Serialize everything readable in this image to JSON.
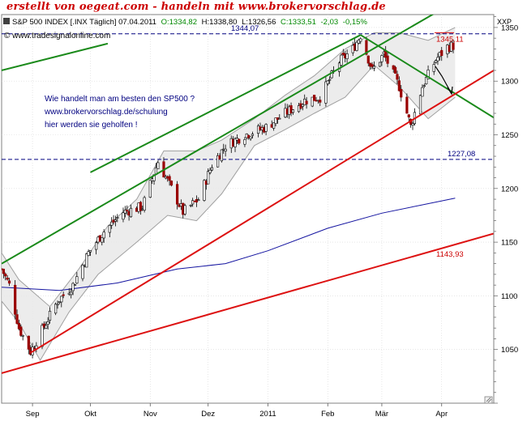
{
  "banner": "erstellt von oegeat.com - handeln mit www.brokervorschlag.de",
  "chart_data": {
    "type": "candlestick",
    "header": {
      "instrument": "S&P 500 INDEX [.INX Täglich] 07.04.2011",
      "open": "O:1334,82",
      "high": "H:1338,80",
      "low": "L:1326,56",
      "close": "C:1333,51",
      "change": "-2,03",
      "change_pct": "-0,15%"
    },
    "source": "© www.tradesignalonline.com",
    "axis_symbol": "XXP",
    "ylim": [
      1000,
      1362
    ],
    "xlim": [
      "2010-08-16",
      "2011-04-28"
    ],
    "y_ticks": [
      1050,
      1100,
      1150,
      1200,
      1250,
      1300,
      1350
    ],
    "x_ticks": [
      {
        "date": "2010-09-01",
        "label": "Sep"
      },
      {
        "date": "2010-10-01",
        "label": "Okt"
      },
      {
        "date": "2010-11-01",
        "label": "Nov"
      },
      {
        "date": "2010-12-01",
        "label": "Dez"
      },
      {
        "date": "2011-01-01",
        "label": "2011"
      },
      {
        "date": "2011-02-01",
        "label": "Feb"
      },
      {
        "date": "2011-03-01",
        "label": "Mär"
      },
      {
        "date": "2011-04-01",
        "label": "Apr"
      }
    ],
    "levels": [
      {
        "value": 1344.07,
        "label": "1344,07",
        "color": "#000080",
        "style": "dashed"
      },
      {
        "value": 1227.08,
        "label": "1227,08",
        "color": "#000080",
        "style": "dashed"
      }
    ],
    "price_labels": [
      {
        "value": 1345.11,
        "label": "1345,11",
        "color": "#cc0000"
      },
      {
        "value": 1143.93,
        "label": "1143,93",
        "color": "#cc0000"
      }
    ],
    "trend_lines": [
      {
        "color": "#1a8a1a",
        "points": [
          [
            "2010-08-16",
            1130
          ],
          [
            "2011-04-28",
            1395
          ]
        ]
      },
      {
        "color": "#1a8a1a",
        "points": [
          [
            "2010-08-16",
            1310
          ],
          [
            "2010-10-10",
            1335
          ]
        ]
      },
      {
        "color": "#1a8a1a",
        "points": [
          [
            "2010-10-01",
            1215
          ],
          [
            "2011-02-18",
            1343
          ]
        ]
      },
      {
        "color": "#1a8a1a",
        "points": [
          [
            "2011-02-18",
            1343
          ],
          [
            "2011-04-28",
            1266
          ]
        ]
      },
      {
        "color": "#dd1111",
        "points": [
          [
            "2010-08-31",
            1047
          ],
          [
            "2011-04-28",
            1310
          ]
        ]
      },
      {
        "color": "#dd1111",
        "points": [
          [
            "2010-08-16",
            1028
          ],
          [
            "2011-04-28",
            1158
          ]
        ]
      }
    ],
    "moving_average": {
      "color": "#1414a0",
      "points": [
        [
          "2010-08-16",
          1108
        ],
        [
          "2010-09-15",
          1105
        ],
        [
          "2010-10-15",
          1112
        ],
        [
          "2010-11-15",
          1125
        ],
        [
          "2010-12-10",
          1130
        ],
        [
          "2011-01-01",
          1142
        ],
        [
          "2011-02-01",
          1163
        ],
        [
          "2011-03-01",
          1177
        ],
        [
          "2011-04-08",
          1191
        ]
      ]
    },
    "bollinger_upper": [
      [
        "2010-08-16",
        1140
      ],
      [
        "2010-08-25",
        1115
      ],
      [
        "2010-09-10",
        1090
      ],
      [
        "2010-09-25",
        1125
      ],
      [
        "2010-10-10",
        1165
      ],
      [
        "2010-10-25",
        1190
      ],
      [
        "2010-11-08",
        1235
      ],
      [
        "2010-11-25",
        1235
      ],
      [
        "2010-12-08",
        1245
      ],
      [
        "2010-12-25",
        1265
      ],
      [
        "2011-01-10",
        1287
      ],
      [
        "2011-01-25",
        1305
      ],
      [
        "2011-02-10",
        1330
      ],
      [
        "2011-02-25",
        1345
      ],
      [
        "2011-03-10",
        1345
      ],
      [
        "2011-03-25",
        1338
      ],
      [
        "2011-04-08",
        1350
      ]
    ],
    "bollinger_lower": [
      [
        "2010-08-16",
        1095
      ],
      [
        "2010-08-25",
        1075
      ],
      [
        "2010-09-05",
        1040
      ],
      [
        "2010-09-20",
        1085
      ],
      [
        "2010-10-05",
        1120
      ],
      [
        "2010-10-25",
        1150
      ],
      [
        "2010-11-10",
        1175
      ],
      [
        "2010-11-25",
        1170
      ],
      [
        "2010-12-08",
        1195
      ],
      [
        "2010-12-25",
        1240
      ],
      [
        "2011-01-10",
        1255
      ],
      [
        "2011-01-25",
        1270
      ],
      [
        "2011-02-10",
        1285
      ],
      [
        "2011-02-25",
        1315
      ],
      [
        "2011-03-10",
        1295
      ],
      [
        "2011-03-25",
        1265
      ],
      [
        "2011-04-08",
        1285
      ]
    ],
    "prices": [
      [
        "2010-08-16",
        1125
      ],
      [
        "2010-08-20",
        1110
      ],
      [
        "2010-08-25",
        1070
      ],
      [
        "2010-08-31",
        1048
      ],
      [
        "2010-09-06",
        1068
      ],
      [
        "2010-09-14",
        1095
      ],
      [
        "2010-09-22",
        1110
      ],
      [
        "2010-09-30",
        1140
      ],
      [
        "2010-10-08",
        1160
      ],
      [
        "2010-10-18",
        1178
      ],
      [
        "2010-10-28",
        1183
      ],
      [
        "2010-11-05",
        1225
      ],
      [
        "2010-11-12",
        1200
      ],
      [
        "2010-11-18",
        1178
      ],
      [
        "2010-11-26",
        1190
      ],
      [
        "2010-12-03",
        1222
      ],
      [
        "2010-12-10",
        1240
      ],
      [
        "2010-12-20",
        1250
      ],
      [
        "2010-12-31",
        1257
      ],
      [
        "2011-01-10",
        1270
      ],
      [
        "2011-01-20",
        1282
      ],
      [
        "2011-01-28",
        1285
      ],
      [
        "2011-02-07",
        1318
      ],
      [
        "2011-02-14",
        1330
      ],
      [
        "2011-02-18",
        1343
      ],
      [
        "2011-02-24",
        1310
      ],
      [
        "2011-03-02",
        1325
      ],
      [
        "2011-03-10",
        1295
      ],
      [
        "2011-03-16",
        1258
      ],
      [
        "2011-03-22",
        1295
      ],
      [
        "2011-03-29",
        1320
      ],
      [
        "2011-04-04",
        1332
      ],
      [
        "2011-04-07",
        1333
      ]
    ],
    "annotations": [
      "Wie handelt man am besten den SP500 ?",
      "www.brokervorschlag.de/schulung",
      "hier werden sie geholfen !"
    ]
  }
}
